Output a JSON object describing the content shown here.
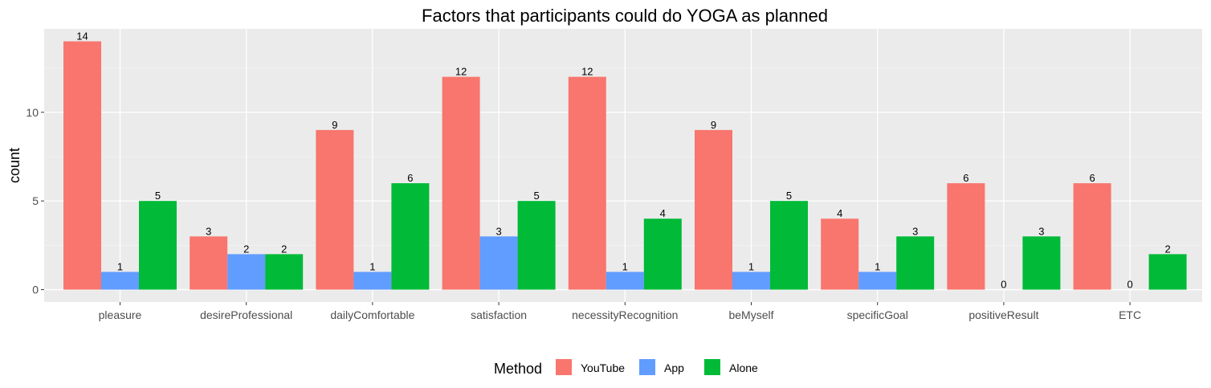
{
  "chart_data": {
    "type": "bar",
    "title": "Factors that participants could do YOGA as planned",
    "xlabel": "",
    "ylabel": "count",
    "categories": [
      "pleasure",
      "desireProfessional",
      "dailyComfortable",
      "satisfaction",
      "necessityRecognition",
      "beMyself",
      "specificGoal",
      "positiveResult",
      "ETC"
    ],
    "series": [
      {
        "name": "YouTube",
        "color": "#F8766D",
        "values": [
          14,
          3,
          9,
          12,
          12,
          9,
          4,
          6,
          6
        ]
      },
      {
        "name": "App",
        "color": "#619CFF",
        "values": [
          1,
          2,
          1,
          3,
          1,
          1,
          1,
          0,
          0
        ]
      },
      {
        "name": "Alone",
        "color": "#00BA38",
        "values": [
          5,
          2,
          6,
          5,
          4,
          5,
          3,
          3,
          2
        ]
      }
    ],
    "ylim": [
      -0.7,
      14.7
    ],
    "yticks": [
      0,
      5,
      10
    ],
    "grid": true,
    "legend": {
      "title": "Method",
      "position": "bottom"
    }
  }
}
